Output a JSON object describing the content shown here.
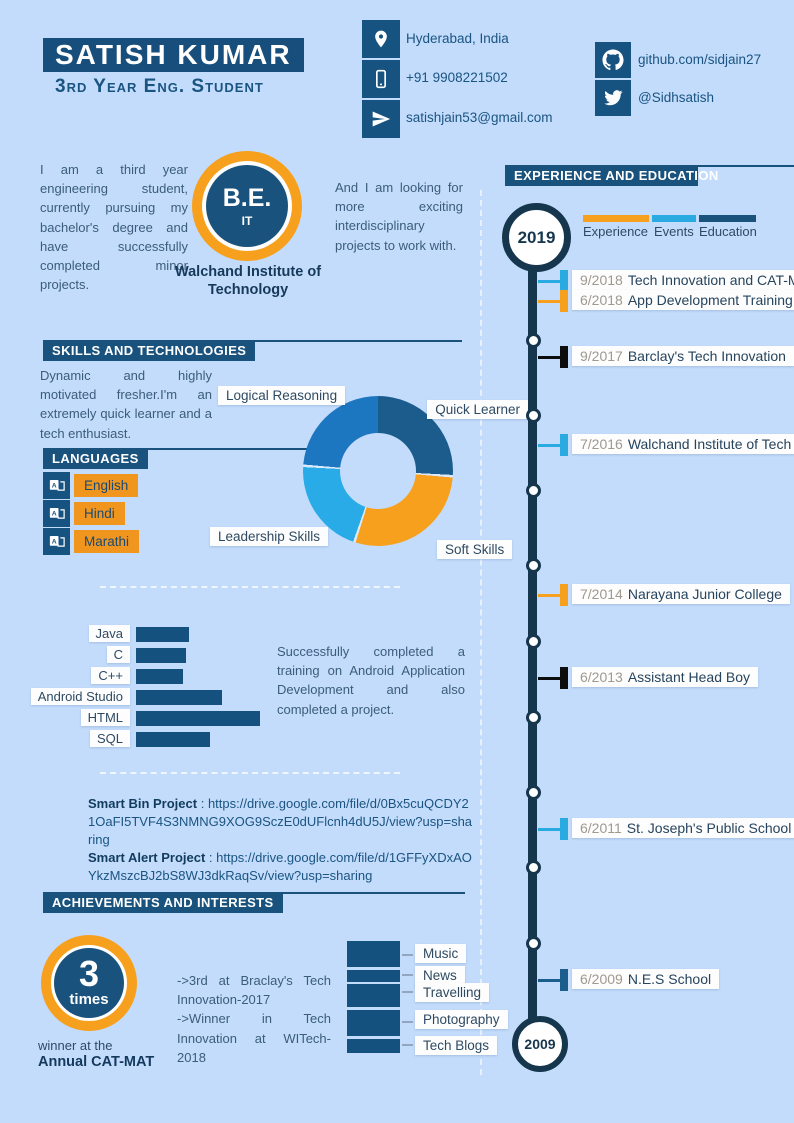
{
  "colors": {
    "background": "#c3dcfc",
    "dark_blue": "#1a527e",
    "navy": "#16364e",
    "experience": "#f7a01d",
    "events": "#29aae1",
    "education": "#1b5e8e",
    "black": "#0d0d0d",
    "bar_blue": "#15517e",
    "chip_orange": "#f0961e"
  },
  "header": {
    "name": "SATISH KUMAR",
    "subtitle": "3rd Year Eng. Student",
    "contacts": [
      {
        "icon": "location-pin-icon",
        "value": "Hyderabad, India"
      },
      {
        "icon": "phone-icon",
        "value": "+91 9908221502"
      },
      {
        "icon": "send-icon",
        "value": "satishjain53@gmail.com"
      }
    ],
    "socials": [
      {
        "icon": "github-icon",
        "value": "github.com/sidjain27"
      },
      {
        "icon": "twitter-icon",
        "value": "@Sidhsatish"
      }
    ]
  },
  "about": {
    "left_text": "I am a third year engineering student, currently pursuing my bachelor's degree and have successfully completed minor projects.",
    "degree": "B.E.",
    "degree_sub": "IT",
    "degree_caption": "Walchand Institute of Technology",
    "right_text": "And I am looking for more exciting interdisciplinary projects to work with."
  },
  "skills": {
    "title": "SKILLS AND TECHNOLOGIES",
    "intro": "Dynamic and highly motivated fresher.I'm an extremely quick learner and a tech enthusiast.",
    "languages_title": "LANGUAGES",
    "languages": [
      "English",
      "Hindi",
      "Marathi"
    ],
    "training_note": "Successfully completed a training on Android Application Development and also completed a project.",
    "separator": " : ",
    "projects": [
      {
        "name": "Smart Bin Project",
        "url": "https://drive.google.com/file/d/0Bx5cuQCDY21OaFI5TVF4S3NMNG9XOG9SczE0dUFlcnh4dU5J/view?usp=sharing"
      },
      {
        "name": "Smart Alert Project",
        "url": "https://drive.google.com/file/d/1GFFyXDxAOYkzMszcBJ2bS8WJ3dkRaqSv/view?usp=sharing"
      }
    ]
  },
  "achievements": {
    "title": "ACHIEVEMENTS AND INTERESTS",
    "badge_number": "3",
    "badge_label": "times",
    "badge_caption_line1": "winner at the",
    "badge_caption_line2": "Annual CAT-MAT",
    "notes": [
      "->3rd at Braclay's Tech Innovation-2017",
      "->Winner in Tech Innovation at WITech-2018"
    ],
    "interests": [
      "Music",
      "News",
      "Travelling",
      "Photography",
      "Tech Blogs"
    ]
  },
  "timeline": {
    "title": "EXPERIENCE AND EDUCATION",
    "start_year": "2019",
    "end_year": "2009",
    "legend": [
      {
        "label": "Experience",
        "color": "#f7a01d"
      },
      {
        "label": "Events",
        "color": "#29aae1"
      },
      {
        "label": "Education",
        "color": "#19527b"
      }
    ],
    "quick_learner_label": "Quick Learner",
    "entries": [
      {
        "date": "9/2018",
        "title": "Tech Innovation and CAT-MAT",
        "type": "events"
      },
      {
        "date": "6/2018",
        "title": "App Development Training",
        "type": "experience"
      },
      {
        "date": "9/2017",
        "title": "Barclay's Tech Innovation",
        "type": "black"
      },
      {
        "date": "7/2016",
        "title": "Walchand Institute of Tech",
        "type": "events"
      },
      {
        "date": "7/2014",
        "title": "Narayana Junior College",
        "type": "experience"
      },
      {
        "date": "6/2013",
        "title": "Assistant Head Boy",
        "type": "black"
      },
      {
        "date": "6/2011",
        "title": "St. Joseph's Public School",
        "type": "events"
      },
      {
        "date": "6/2009",
        "title": "N.E.S School",
        "type": "education"
      }
    ]
  },
  "chart_data": [
    {
      "type": "pie",
      "donut": true,
      "title": "Skills donut",
      "labels": [
        "Quick Learner",
        "Soft Skills",
        "Leadership Skills",
        "Logical Reasoning"
      ],
      "values": [
        25,
        29,
        21,
        25
      ],
      "colors": [
        "#1b5c8c",
        "#f7a01d",
        "#29abe8",
        "#1d76c0"
      ],
      "legend_position": "around-labels"
    },
    {
      "type": "bar",
      "orientation": "horizontal",
      "title": "Technologies proficiency",
      "categories": [
        "Java",
        "C",
        "C++",
        "Android Studio",
        "HTML",
        "SQL"
      ],
      "values": [
        43,
        40,
        38,
        69,
        100,
        60
      ],
      "xlim": [
        0,
        100
      ],
      "grid": false
    }
  ]
}
